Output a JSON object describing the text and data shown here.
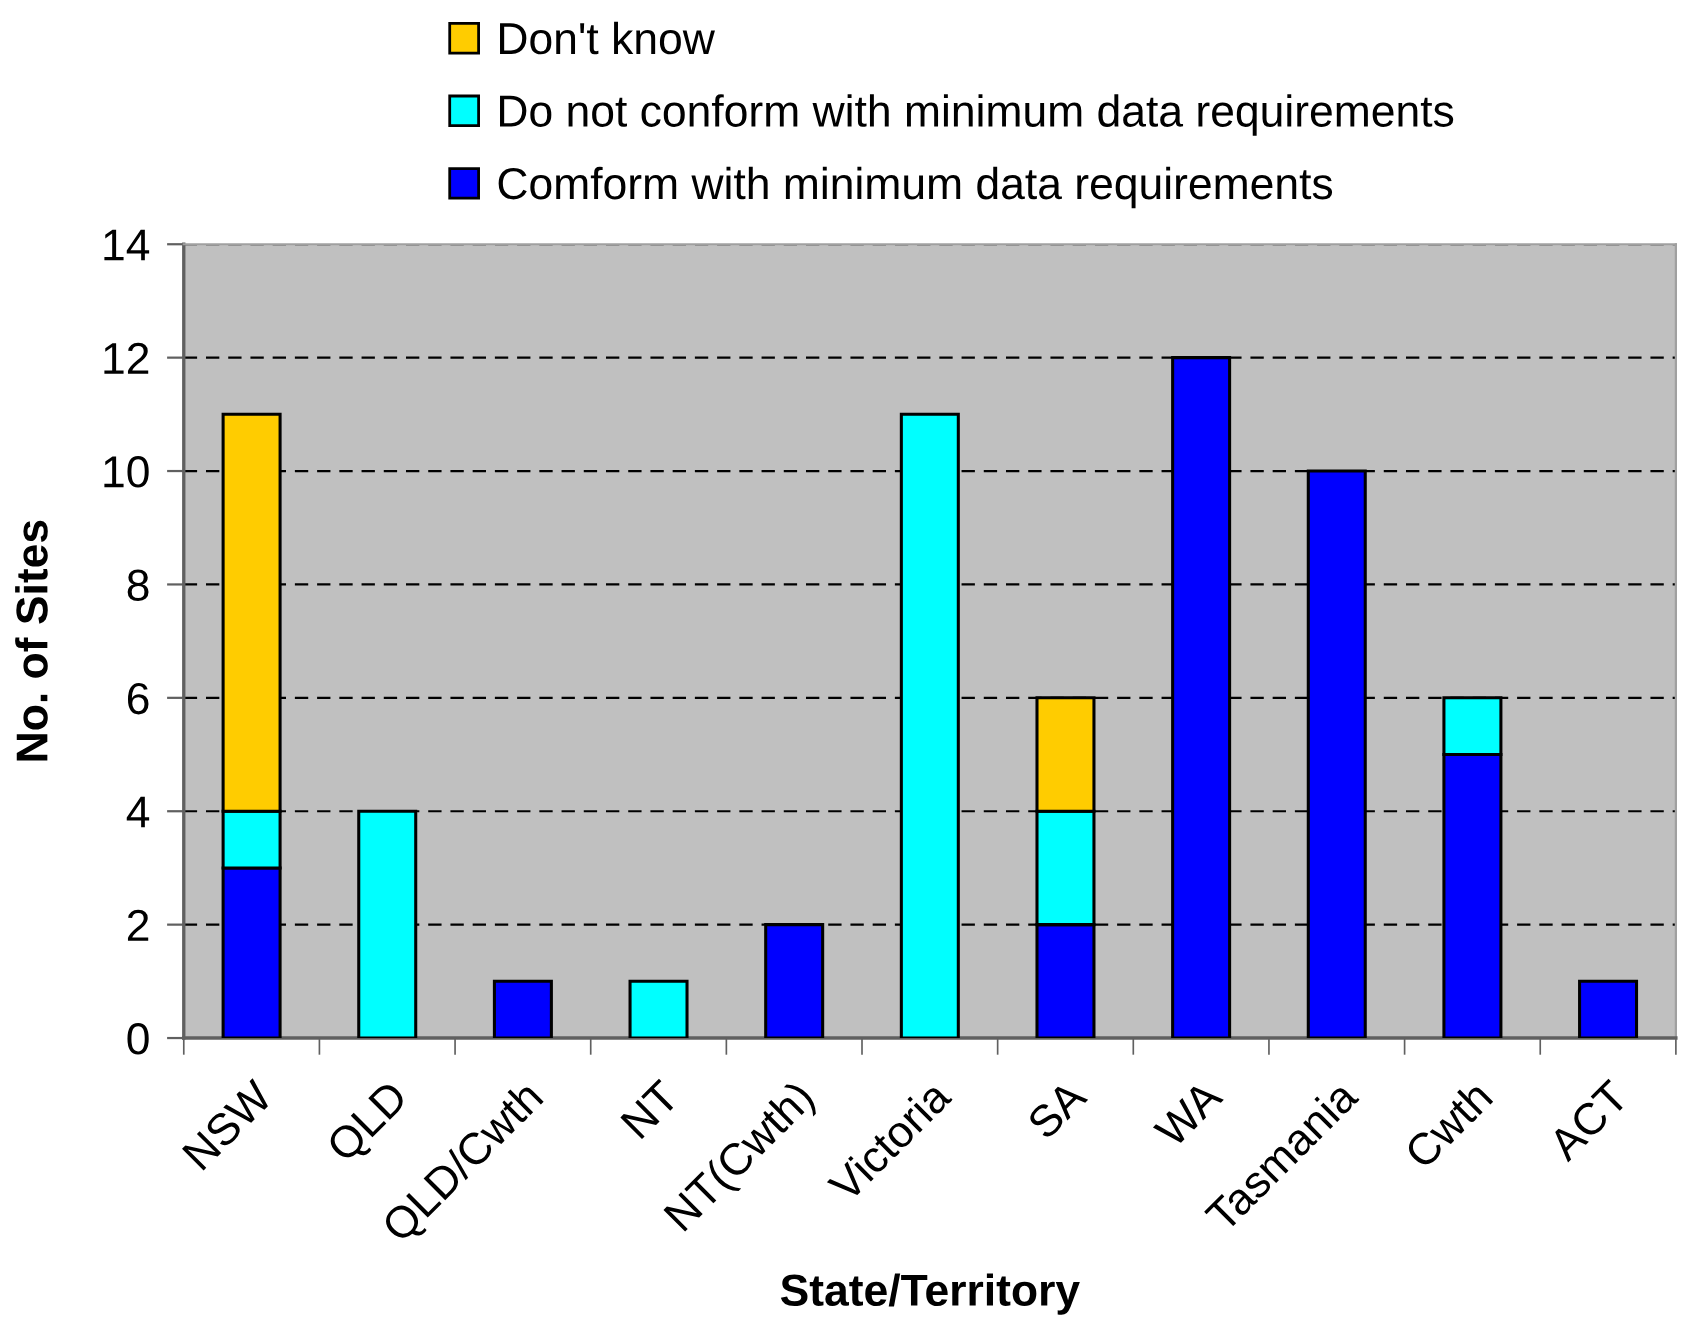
{
  "chart_data": {
    "type": "bar",
    "stacked": true,
    "xlabel": "State/Territory",
    "ylabel": "No. of Sites",
    "categories": [
      "NSW",
      "QLD",
      "QLD/Cwth",
      "NT",
      "NT(Cwth)",
      "Victoria",
      "SA",
      "WA",
      "Tasmania",
      "Cwth",
      "ACT"
    ],
    "series": [
      {
        "name": "Comform with minimum data requirements",
        "color": "#0000ff",
        "values": [
          3,
          0,
          1,
          0,
          2,
          0,
          2,
          12,
          10,
          5,
          1
        ]
      },
      {
        "name": "Do not conform with minimum data requirements",
        "color": "#00ffff",
        "values": [
          1,
          4,
          0,
          1,
          0,
          11,
          2,
          0,
          0,
          1,
          0
        ]
      },
      {
        "name": "Don't know",
        "color": "#ffcc00",
        "values": [
          7,
          0,
          0,
          0,
          0,
          0,
          2,
          0,
          0,
          0,
          0
        ]
      }
    ],
    "ylim": [
      0,
      14
    ],
    "yticks": [
      0,
      2,
      4,
      6,
      8,
      10,
      12,
      14
    ],
    "grid": "y",
    "legend": "top"
  }
}
